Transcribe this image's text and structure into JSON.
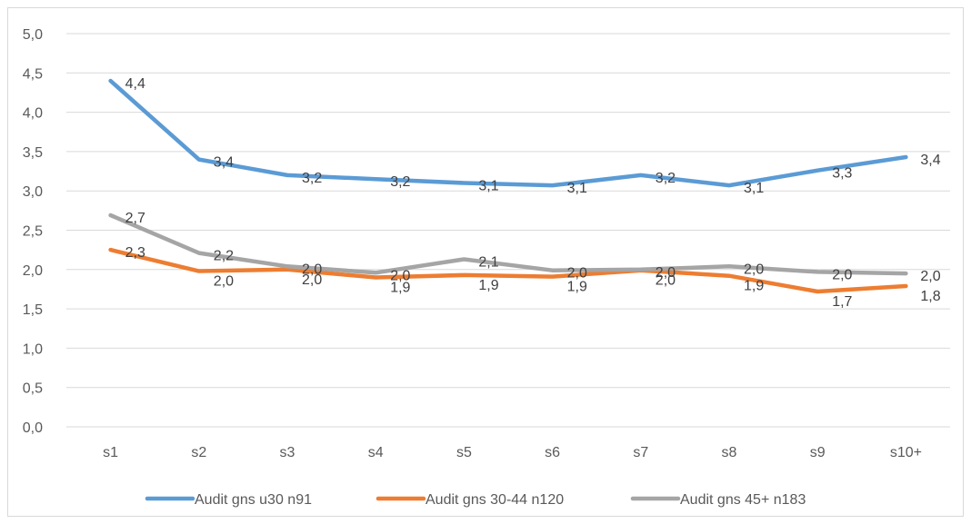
{
  "chart_data": {
    "type": "line",
    "title": "",
    "xlabel": "",
    "ylabel": "",
    "categories": [
      "s1",
      "s2",
      "s3",
      "s4",
      "s5",
      "s6",
      "s7",
      "s8",
      "s9",
      "s10+"
    ],
    "ylim": [
      0,
      5
    ],
    "yticks": [
      "0,0",
      "0,5",
      "1,0",
      "1,5",
      "2,0",
      "2,5",
      "3,0",
      "3,5",
      "4,0",
      "4,5",
      "5,0"
    ],
    "grid": true,
    "legend": "bottom",
    "series": [
      {
        "name": "Audit gns u30 n91",
        "color": "#5b9bd5",
        "values": [
          4.4,
          3.4,
          3.2,
          3.15,
          3.1,
          3.07,
          3.2,
          3.07,
          3.26,
          3.43
        ],
        "labels": [
          "4,4",
          "3,4",
          "3,2",
          "3,2",
          "3,1",
          "3,1",
          "3,2",
          "3,1",
          "3,3",
          "3,4"
        ]
      },
      {
        "name": "Audit gns 30-44 n120",
        "color": "#ed7d31",
        "values": [
          2.25,
          1.98,
          2.0,
          1.9,
          1.93,
          1.91,
          1.99,
          1.92,
          1.72,
          1.79
        ],
        "labels": [
          "2,3",
          "2,0",
          "2,0",
          "1,9",
          "1,9",
          "1,9",
          "2,0",
          "1,9",
          "1,7",
          "1,8"
        ]
      },
      {
        "name": "Audit gns 45+ n183",
        "color": "#a5a5a5",
        "values": [
          2.69,
          2.21,
          2.04,
          1.96,
          2.13,
          1.99,
          2.0,
          2.04,
          1.97,
          1.95
        ],
        "labels": [
          "2,7",
          "2,2",
          "2,0",
          "2,0",
          "2,1",
          "2,0",
          "2,0",
          "2,0",
          "2,0",
          "2,0"
        ]
      }
    ]
  }
}
